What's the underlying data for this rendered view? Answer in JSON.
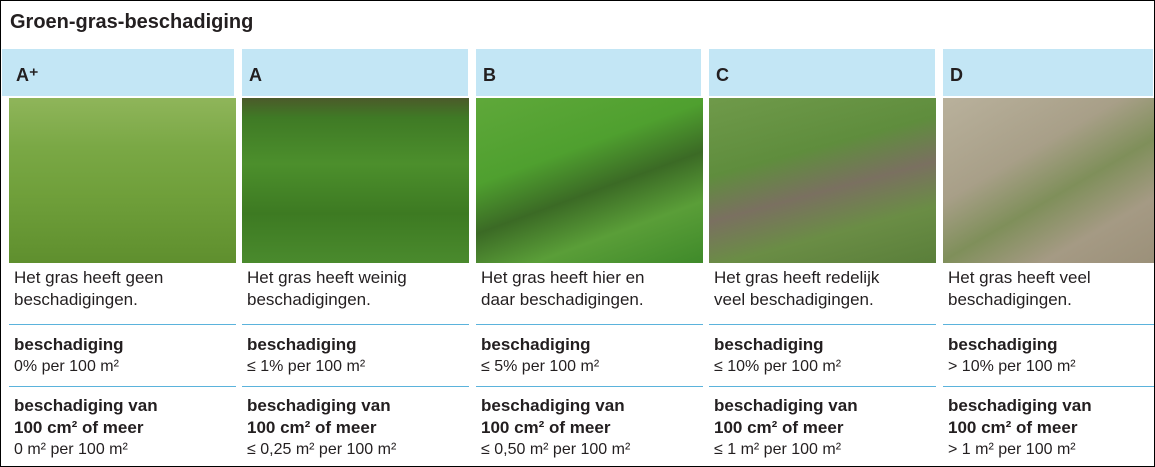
{
  "title": "Groen-gras-beschadiging",
  "columns": [
    {
      "grade": "A⁺",
      "description": [
        "Het gras heeft geen",
        "beschadigingen."
      ],
      "damage_label": "beschadiging",
      "damage_value": "0% per 100 m²",
      "large_label": [
        "beschadiging van",
        "100 cm² of meer"
      ],
      "large_value": "0 m² per 100 m²"
    },
    {
      "grade": "A",
      "description": [
        "Het gras heeft weinig",
        "beschadigingen."
      ],
      "damage_label": "beschadiging",
      "damage_value": "≤ 1% per 100 m²",
      "large_label": [
        "beschadiging van",
        "100 cm² of meer"
      ],
      "large_value": "≤ 0,25 m² per 100 m²"
    },
    {
      "grade": "B",
      "description": [
        "Het gras heeft hier en",
        "daar beschadigingen."
      ],
      "damage_label": "beschadiging",
      "damage_value": "≤ 5% per 100 m²",
      "large_label": [
        "beschadiging van",
        "100 cm² of meer"
      ],
      "large_value": "≤ 0,50 m² per 100 m²"
    },
    {
      "grade": "C",
      "description": [
        "Het gras heeft redelijk",
        "veel beschadigingen."
      ],
      "damage_label": "beschadiging",
      "damage_value": "≤ 10% per 100 m²",
      "large_label": [
        "beschadiging van",
        "100 cm² of meer"
      ],
      "large_value": "≤ 1 m² per 100 m²"
    },
    {
      "grade": "D",
      "description": [
        "Het gras heeft veel",
        "beschadigingen."
      ],
      "damage_label": "beschadiging",
      "damage_value": "> 10% per 100 m²",
      "large_label": [
        "beschadiging van",
        "100 cm² of meer"
      ],
      "large_value": "> 1 m² per 100 m²"
    }
  ]
}
